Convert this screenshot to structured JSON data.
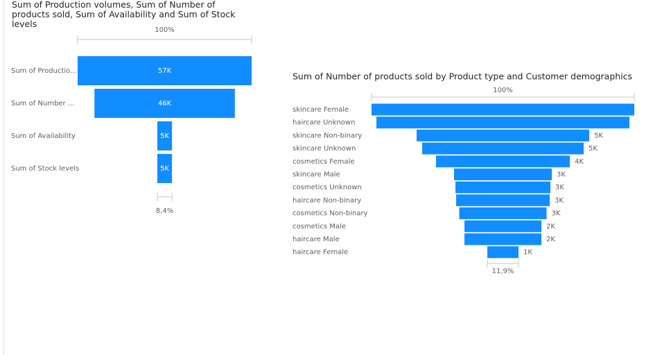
{
  "chart_data": [
    {
      "type": "funnel",
      "title": "Sum of Production volumes, Sum of Number of products sold, Sum of Availability and Sum of Stock levels",
      "categories": [
        "Sum of Productio...",
        "Sum of Number ...",
        "Sum of Availability",
        "Sum of Stock levels"
      ],
      "values": [
        57000,
        46000,
        4800,
        4790
      ],
      "value_labels": [
        "57K",
        "46K",
        "5K",
        "5K"
      ],
      "first_percent": "100%",
      "last_percent": "8,4%",
      "color": "#118dff"
    },
    {
      "type": "funnel",
      "title": "Sum of Number of products sold by Product type and Customer demographics",
      "categories": [
        "skincare Female",
        "haircare Unknown",
        "skincare Non-binary",
        "skincare Unknown",
        "cosmetics Female",
        "skincare Male",
        "cosmetics Unknown",
        "haircare Non-binary",
        "cosmetics Non-binary",
        "cosmetics Male",
        "haircare Male",
        "haircare Female"
      ],
      "values": [
        7835,
        7545,
        5147,
        4816,
        3990,
        2915,
        2832,
        2790,
        2604,
        2294,
        2294,
        930
      ],
      "value_labels": [
        null,
        null,
        "5K",
        "5K",
        "4K",
        "3K",
        "3K",
        "3K",
        "3K",
        "2K",
        "2K",
        "1K"
      ],
      "first_percent": "100%",
      "last_percent": "11,9%",
      "color": "#118dff"
    }
  ]
}
